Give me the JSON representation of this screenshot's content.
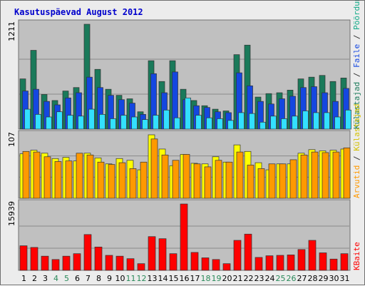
{
  "chart_data": {
    "type": "bar",
    "title": "Kasutuspäevad August 2012",
    "categories": [
      "1",
      "2",
      "3",
      "4",
      "5",
      "6",
      "7",
      "8",
      "9",
      "10",
      "11",
      "12",
      "13",
      "14",
      "15",
      "16",
      "17",
      "18",
      "19",
      "20",
      "21",
      "22",
      "23",
      "24",
      "25",
      "26",
      "27",
      "28",
      "29",
      "30",
      "31"
    ],
    "weekend_days": [
      "4",
      "5",
      "11",
      "12",
      "18",
      "19",
      "25",
      "26"
    ],
    "panels": [
      {
        "id": "visits",
        "ymax": 1211,
        "ymax_label": "1211",
        "series": [
          {
            "name": "Külastajad",
            "color": "#1a7a5a",
            "values": [
              580,
              910,
              400,
              330,
              440,
              480,
              1211,
              690,
              460,
              390,
              350,
              200,
              790,
              550,
              790,
              460,
              330,
              270,
              230,
              210,
              860,
              970,
              370,
              410,
              420,
              450,
              580,
              600,
              620,
              550,
              590
            ]
          },
          {
            "name": "Faile",
            "color": "#1447e0",
            "values": [
              440,
              460,
              320,
              280,
              360,
              420,
              600,
              480,
              390,
              340,
              300,
              170,
              640,
              420,
              660,
              340,
              270,
              250,
              200,
              190,
              650,
              500,
              320,
              290,
              350,
              380,
              480,
              490,
              420,
              320,
              470
            ]
          },
          {
            "name": "Pöördumisi",
            "color": "#33e0ff",
            "values": [
              230,
              170,
              140,
              200,
              160,
              150,
              230,
              170,
              120,
              160,
              140,
              110,
              160,
              220,
              130,
              360,
              160,
              130,
              120,
              100,
              190,
              180,
              80,
              150,
              120,
              150,
              210,
              190,
              190,
              140,
              220
            ]
          }
        ]
      },
      {
        "id": "traffic",
        "ymax": 107,
        "ymax_label": "107",
        "series": [
          {
            "name": "Külastajad",
            "color": "#ffff00",
            "values": [
              75,
              81,
              76,
              67,
              69,
              63,
              76,
              68,
              58,
              67,
              64,
              48,
              107,
              83,
              55,
              74,
              59,
              58,
              70,
              61,
              90,
              79,
              60,
              48,
              58,
              58,
              76,
              82,
              80,
              81,
              83
            ]
          },
          {
            "name": "Arvutid",
            "color": "#ff9900",
            "values": [
              79,
              78,
              70,
              62,
              63,
              76,
              73,
              61,
              57,
              60,
              50,
              61,
              100,
              73,
              64,
              74,
              58,
              53,
              64,
              61,
              78,
              56,
              50,
              58,
              58,
              65,
              73,
              78,
              77,
              78,
              85
            ]
          }
        ]
      },
      {
        "id": "kbytes",
        "ymax": 15939,
        "ymax_label": "15939",
        "series": [
          {
            "name": "KBaite",
            "color": "#ff0000",
            "values": [
              5900,
              5500,
              3400,
              2600,
              3400,
              4000,
              8600,
              5600,
              3600,
              3400,
              2800,
              1600,
              8100,
              7600,
              4000,
              15939,
              4300,
              3000,
              2600,
              1600,
              7200,
              8700,
              3100,
              3500,
              3600,
              3700,
              5000,
              7200,
              4200,
              2700,
              4000
            ]
          }
        ]
      }
    ],
    "separators": [
      "/",
      "/"
    ]
  }
}
